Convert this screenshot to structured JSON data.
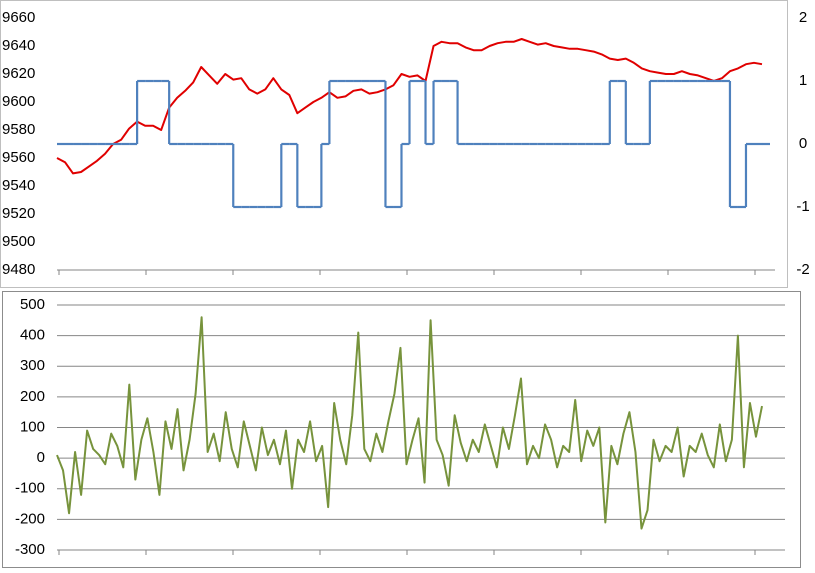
{
  "chart_data": [
    {
      "type": "line",
      "ylim": [
        9480,
        9660
      ],
      "yticks": [
        9480,
        9500,
        9520,
        9540,
        9560,
        9580,
        9600,
        9620,
        9640,
        9660
      ],
      "y2lim": [
        -2,
        2
      ],
      "y2ticks": [
        -2,
        -1,
        0,
        1,
        2
      ],
      "grid": false,
      "series": [
        {
          "color": "#e00000",
          "values": [
            9560,
            9557,
            9549,
            9550,
            9554,
            9558,
            9563,
            9570,
            9573,
            9581,
            9586,
            9583,
            9583,
            9580,
            9596,
            9603,
            9608,
            9614,
            9625,
            9619,
            9613,
            9620,
            9616,
            9617,
            9609,
            9606,
            9609,
            9617,
            9609,
            9605,
            9592,
            9596,
            9600,
            9603,
            9607,
            9603,
            9604,
            9608,
            9609,
            9606,
            9607,
            9609,
            9612,
            9620,
            9618,
            9619,
            9615,
            9640,
            9643,
            9642,
            9642,
            9639,
            9637,
            9637,
            9640,
            9642,
            9643,
            9643,
            9645,
            9643,
            9641,
            9642,
            9640,
            9639,
            9638,
            9638,
            9637,
            9636,
            9634,
            9631,
            9630,
            9631,
            9628,
            9624,
            9622,
            9621,
            9620,
            9620,
            9622,
            9620,
            9619,
            9617,
            9615,
            9617,
            9622,
            9624,
            9627,
            9628,
            9627
          ]
        },
        {
          "color": "#4f81bd",
          "axis": "y2",
          "step": true,
          "values": [
            0,
            0,
            0,
            0,
            0,
            0,
            0,
            0,
            0,
            0,
            1,
            1,
            1,
            1,
            0,
            0,
            0,
            0,
            0,
            0,
            0,
            0,
            -1,
            -1,
            -1,
            -1,
            -1,
            -1,
            0,
            0,
            -1,
            -1,
            -1,
            0,
            1,
            1,
            1,
            1,
            1,
            1,
            1,
            -1,
            -1,
            0,
            1,
            1,
            0,
            1,
            1,
            1,
            0,
            0,
            0,
            0,
            0,
            0,
            0,
            0,
            0,
            0,
            0,
            0,
            0,
            0,
            0,
            0,
            0,
            0,
            0,
            1,
            1,
            0,
            0,
            0,
            1,
            1,
            1,
            1,
            1,
            1,
            1,
            1,
            1,
            1,
            -1,
            -1,
            0,
            0,
            0
          ]
        }
      ]
    },
    {
      "type": "line",
      "ylim": [
        -300,
        500
      ],
      "yticks": [
        -300,
        -200,
        -100,
        0,
        100,
        200,
        300,
        400,
        500
      ],
      "grid": true,
      "series": [
        {
          "color": "#77933c",
          "values": [
            10,
            -40,
            -180,
            20,
            -120,
            90,
            30,
            10,
            -20,
            80,
            40,
            -30,
            240,
            -70,
            60,
            130,
            20,
            -120,
            120,
            30,
            160,
            -40,
            60,
            210,
            460,
            20,
            80,
            -10,
            150,
            30,
            -30,
            120,
            40,
            -40,
            100,
            10,
            60,
            -20,
            90,
            -100,
            60,
            20,
            120,
            -10,
            40,
            -160,
            180,
            60,
            -20,
            140,
            410,
            30,
            -10,
            80,
            20,
            120,
            210,
            360,
            -20,
            60,
            130,
            -80,
            450,
            60,
            10,
            -90,
            140,
            50,
            -10,
            60,
            20,
            110,
            40,
            -30,
            100,
            30,
            140,
            260,
            -20,
            40,
            0,
            110,
            60,
            -30,
            40,
            20,
            190,
            -10,
            90,
            40,
            100,
            -210,
            40,
            -20,
            80,
            150,
            20,
            -230,
            -170,
            60,
            -10,
            40,
            20,
            100,
            -60,
            40,
            20,
            80,
            10,
            -30,
            110,
            -10,
            60,
            400,
            -30,
            180,
            70,
            170
          ]
        }
      ]
    }
  ]
}
